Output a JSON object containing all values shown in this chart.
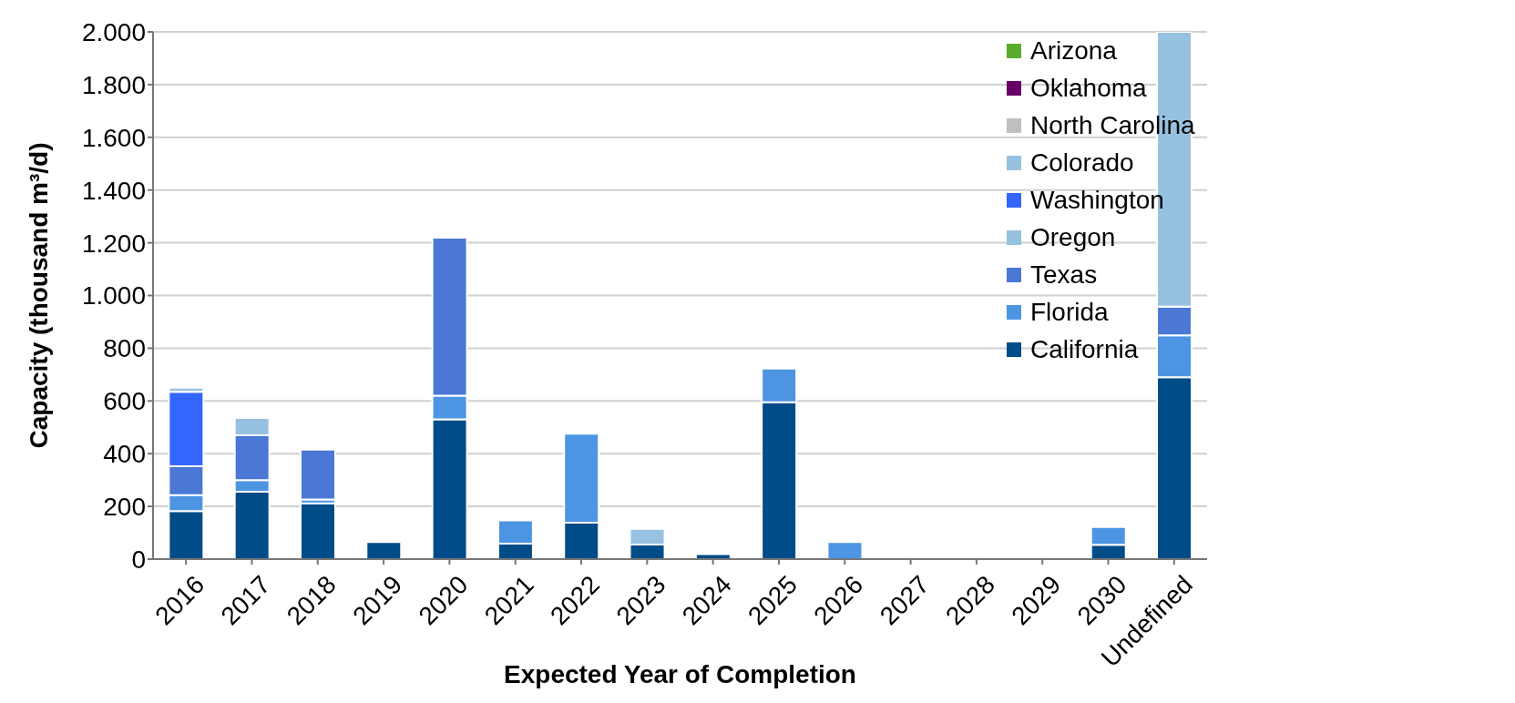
{
  "chart_data": {
    "type": "bar",
    "stacked": true,
    "xlabel": "Expected Year of Completion",
    "ylabel": "Capacity (thousand m³/d)",
    "categories": [
      "2016",
      "2017",
      "2018",
      "2019",
      "2020",
      "2021",
      "2022",
      "2023",
      "2024",
      "2025",
      "2026",
      "2027",
      "2028",
      "2029",
      "2030",
      "Undefined"
    ],
    "series": [
      {
        "name": "California",
        "color": "#004c88",
        "values": [
          182,
          256,
          212,
          65,
          530,
          59,
          138,
          55,
          19,
          595,
          null,
          null,
          null,
          null,
          54,
          690
        ]
      },
      {
        "name": "Florida",
        "color": "#4d94e3",
        "values": [
          61,
          44,
          14,
          null,
          90,
          88,
          338,
          null,
          null,
          128,
          65,
          null,
          null,
          null,
          68,
          159
        ]
      },
      {
        "name": "Texas",
        "color": "#4a78d4",
        "values": [
          109,
          170,
          189,
          null,
          599,
          null,
          null,
          null,
          null,
          null,
          null,
          null,
          null,
          null,
          null,
          109
        ]
      },
      {
        "name": "Oregon",
        "color": "#97c1e1",
        "values": [
          null,
          65,
          null,
          null,
          null,
          null,
          null,
          60,
          null,
          null,
          null,
          null,
          null,
          null,
          null,
          1042
        ]
      },
      {
        "name": "Washington",
        "color": "#3366ff",
        "values": [
          283,
          null,
          null,
          null,
          null,
          null,
          null,
          null,
          null,
          null,
          null,
          null,
          null,
          null,
          null,
          null
        ]
      },
      {
        "name": "Colorado",
        "color": "#97c1e1",
        "values": [
          15,
          null,
          null,
          null,
          null,
          null,
          null,
          null,
          null,
          null,
          null,
          null,
          null,
          null,
          null,
          null
        ]
      },
      {
        "name": "North Carolina",
        "color": "#bfbfbf",
        "values": [
          null,
          null,
          null,
          null,
          null,
          null,
          null,
          null,
          null,
          null,
          null,
          null,
          null,
          4,
          null,
          null
        ]
      },
      {
        "name": "Oklahoma",
        "color": "#660066",
        "values": [
          null,
          null,
          null,
          null,
          null,
          null,
          null,
          null,
          null,
          null,
          null,
          null,
          null,
          null,
          null,
          null
        ]
      },
      {
        "name": "Arizona",
        "color": "#5aac2e",
        "values": [
          null,
          null,
          null,
          null,
          null,
          null,
          null,
          null,
          null,
          null,
          null,
          null,
          null,
          null,
          null,
          null
        ]
      }
    ],
    "ylim": [
      0,
      2000
    ],
    "yticks": [
      {
        "value": 0,
        "label": "0"
      },
      {
        "value": 200,
        "label": "200"
      },
      {
        "value": 400,
        "label": "400"
      },
      {
        "value": 600,
        "label": "600"
      },
      {
        "value": 800,
        "label": "800"
      },
      {
        "value": 1000,
        "label": "1.000"
      },
      {
        "value": 1200,
        "label": "1.200"
      },
      {
        "value": 1400,
        "label": "1.400"
      },
      {
        "value": 1600,
        "label": "1.600"
      },
      {
        "value": 1800,
        "label": "1.800"
      },
      {
        "value": 2000,
        "label": "2.000"
      }
    ],
    "grid": "y",
    "legend": "top right"
  }
}
